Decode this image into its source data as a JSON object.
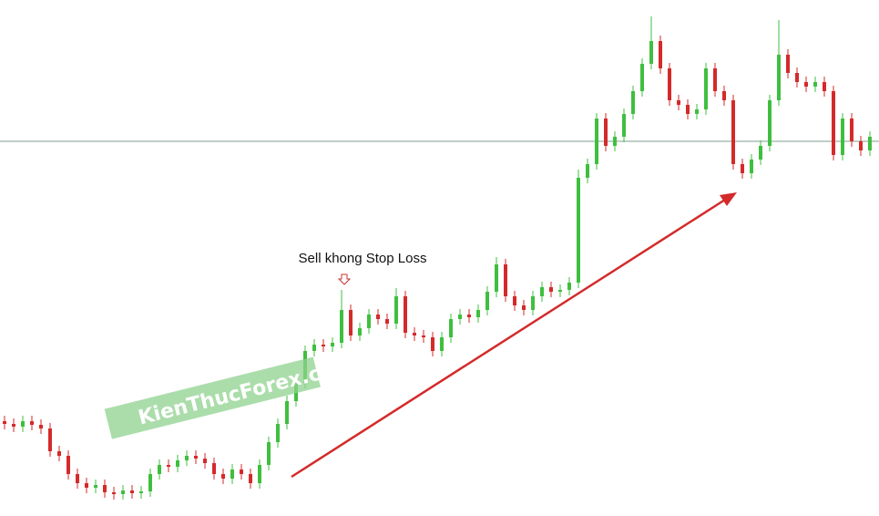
{
  "chart_data": {
    "type": "candlestick",
    "annotation": "Sell khong Stop Loss",
    "watermark": "KienThucForex.com",
    "up_color": "#3fbf3f",
    "down_color": "#d42a2a",
    "reference_line": {
      "value": 411,
      "color": "#7f9f8f"
    },
    "ylim": [
      0,
      566
    ],
    "open": [
      104,
      101,
      98,
      104,
      100,
      96,
      71,
      66,
      46,
      36,
      31,
      34,
      26,
      24,
      28,
      25,
      27,
      46,
      56,
      54,
      61,
      66,
      63,
      58,
      46,
      41,
      51,
      46,
      36,
      56,
      81,
      101,
      126,
      146,
      181,
      188,
      186,
      190,
      226,
      198,
      206,
      221,
      216,
      211,
      241,
      201,
      198,
      196,
      181,
      196,
      216,
      221,
      218,
      226,
      246,
      276,
      241,
      231,
      226,
      241,
      251,
      246,
      248,
      256,
      371,
      386,
      436,
      406,
      416,
      441,
      466,
      496,
      521,
      491,
      456,
      451,
      441,
      446,
      491,
      466,
      456,
      386,
      376,
      391,
      406,
      456,
      506,
      486,
      476,
      471,
      476,
      466,
      396,
      436,
      411,
      401
    ],
    "high": [
      110,
      107,
      110,
      110,
      106,
      102,
      77,
      72,
      52,
      42,
      40,
      40,
      32,
      34,
      34,
      33,
      52,
      62,
      62,
      67,
      72,
      72,
      69,
      64,
      52,
      57,
      57,
      52,
      62,
      87,
      107,
      132,
      152,
      187,
      194,
      194,
      196,
      248,
      232,
      212,
      227,
      227,
      222,
      250,
      247,
      207,
      204,
      202,
      202,
      222,
      227,
      227,
      232,
      252,
      284,
      282,
      247,
      237,
      247,
      257,
      257,
      254,
      262,
      380,
      392,
      442,
      442,
      422,
      447,
      472,
      502,
      548,
      527,
      497,
      462,
      457,
      452,
      497,
      497,
      472,
      462,
      392,
      397,
      412,
      462,
      544,
      512,
      492,
      482,
      482,
      482,
      472,
      442,
      442,
      417,
      422
    ],
    "low": [
      95,
      92,
      92,
      94,
      90,
      65,
      60,
      40,
      30,
      25,
      25,
      20,
      18,
      18,
      19,
      19,
      21,
      40,
      48,
      48,
      55,
      57,
      52,
      40,
      35,
      35,
      40,
      30,
      30,
      50,
      75,
      95,
      120,
      140,
      175,
      180,
      180,
      184,
      192,
      192,
      200,
      210,
      205,
      205,
      195,
      192,
      190,
      175,
      175,
      190,
      210,
      212,
      212,
      220,
      240,
      235,
      225,
      220,
      220,
      235,
      240,
      240,
      242,
      250,
      365,
      380,
      400,
      400,
      410,
      435,
      460,
      490,
      485,
      450,
      445,
      435,
      435,
      440,
      460,
      450,
      380,
      370,
      370,
      385,
      400,
      450,
      480,
      470,
      465,
      465,
      460,
      390,
      390,
      405,
      395,
      395
    ],
    "close": [
      101,
      98,
      104,
      100,
      96,
      71,
      66,
      46,
      36,
      31,
      34,
      26,
      24,
      28,
      25,
      27,
      46,
      56,
      54,
      61,
      66,
      63,
      58,
      46,
      41,
      51,
      46,
      36,
      56,
      81,
      101,
      126,
      146,
      181,
      188,
      186,
      190,
      226,
      198,
      206,
      221,
      216,
      211,
      241,
      201,
      198,
      196,
      181,
      196,
      216,
      221,
      218,
      226,
      246,
      276,
      241,
      231,
      226,
      241,
      251,
      246,
      248,
      256,
      371,
      386,
      436,
      406,
      416,
      441,
      466,
      496,
      521,
      491,
      456,
      451,
      441,
      446,
      491,
      466,
      456,
      386,
      376,
      391,
      406,
      456,
      506,
      486,
      476,
      471,
      476,
      466,
      396,
      436,
      411,
      401,
      416
    ]
  }
}
